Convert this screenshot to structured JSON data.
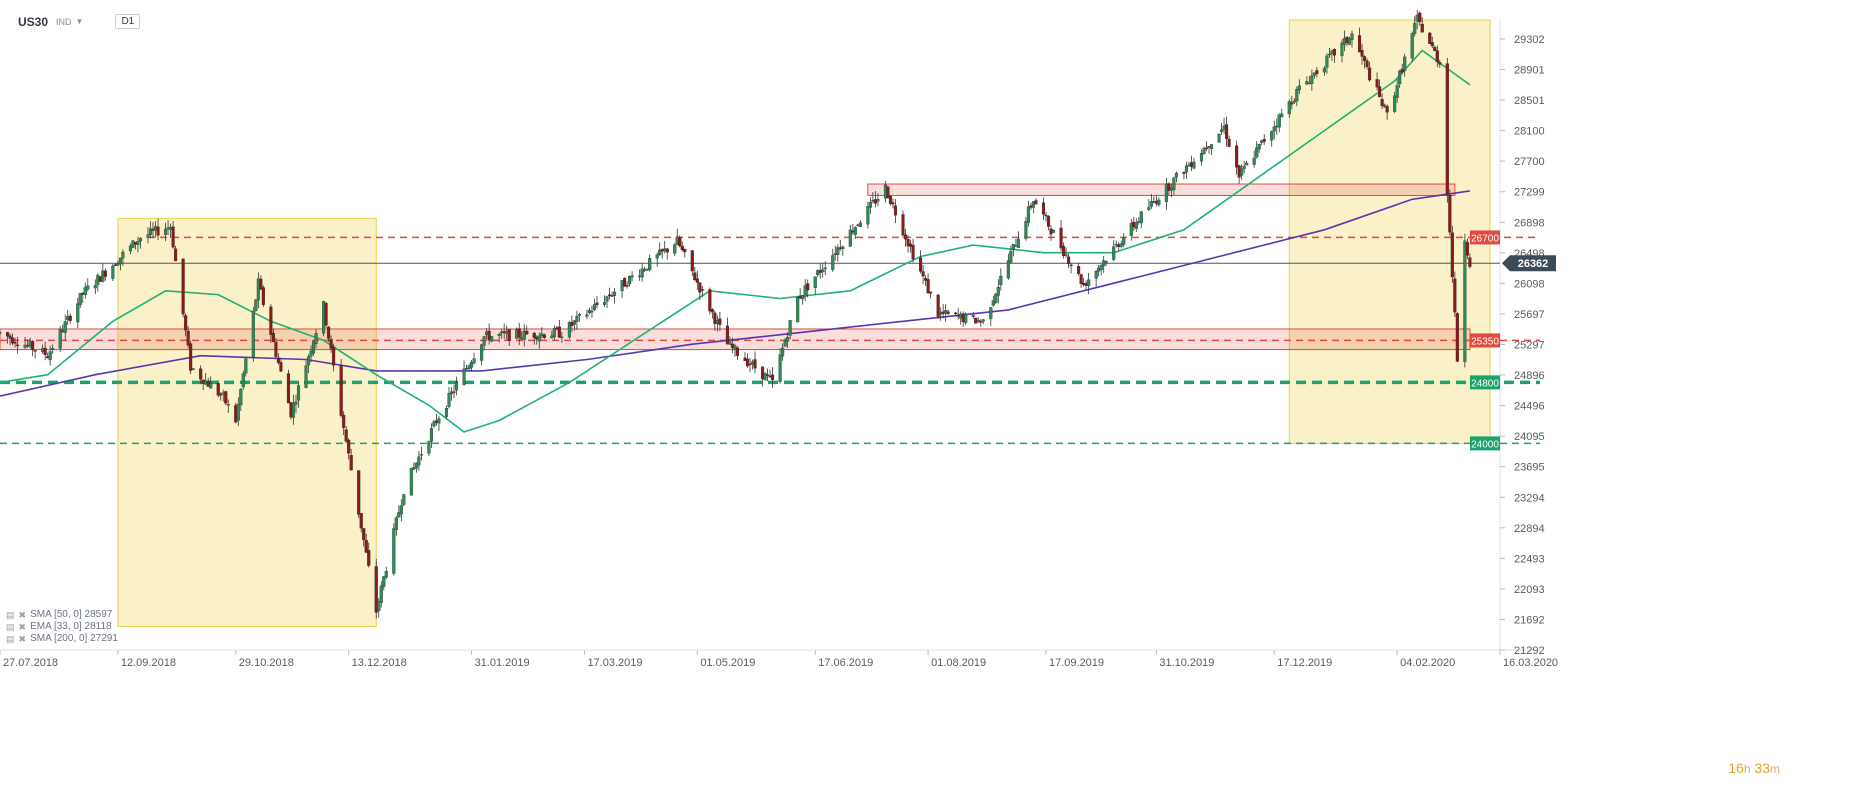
{
  "header": {
    "symbol": "US30",
    "symbol_type": "IND",
    "timeframe": "D1"
  },
  "legend": [
    {
      "label": "SMA [50, 0] 28597"
    },
    {
      "label": "EMA [33, 0] 28118"
    },
    {
      "label": "SMA [200, 0] 27291"
    }
  ],
  "countdown": {
    "hours": "16",
    "h": "h",
    "minutes": "33",
    "m": "m"
  },
  "colors": {
    "up": "#2e8b57",
    "down": "#8b1a1a",
    "sma50": "#1db372",
    "sma200": "#5a35b0",
    "resistance": "#e04a3f",
    "support": "#1aa36a",
    "zone": "#f8ecb5",
    "current": "#4a5560"
  },
  "chart_data": {
    "type": "candlestick",
    "symbol": "US30",
    "timeframe": "D1",
    "ylim": [
      21292,
      29550
    ],
    "xlim": [
      "2018-07-27",
      "2020-03-16"
    ],
    "y_ticks": [
      29302,
      28901,
      28501,
      28100,
      27700,
      27299,
      26898,
      26498,
      26098,
      25697,
      25297,
      24896,
      24496,
      24095,
      23695,
      23294,
      22894,
      22493,
      22093,
      21692,
      21292
    ],
    "x_ticks": [
      "27.07.2018",
      "12.09.2018",
      "29.10.2018",
      "13.12.2018",
      "31.01.2019",
      "17.03.2019",
      "01.05.2019",
      "17.06.2019",
      "01.08.2019",
      "17.09.2019",
      "31.10.2019",
      "17.12.2019",
      "04.02.2020",
      "16.03.2020"
    ],
    "current_price": 26362,
    "price_path": [
      [
        "2018-07-27",
        25450
      ],
      [
        "2018-08-15",
        25160
      ],
      [
        "2018-08-29",
        25960
      ],
      [
        "2018-09-21",
        26700
      ],
      [
        "2018-10-03",
        26850
      ],
      [
        "2018-10-11",
        25000
      ],
      [
        "2018-10-24",
        24600
      ],
      [
        "2018-10-29",
        24300
      ],
      [
        "2018-11-07",
        26100
      ],
      [
        "2018-11-20",
        24400
      ],
      [
        "2018-12-03",
        25800
      ],
      [
        "2018-12-10",
        24400
      ],
      [
        "2018-12-24",
        21800
      ],
      [
        "2019-01-04",
        23400
      ],
      [
        "2019-01-17",
        24300
      ],
      [
        "2019-02-05",
        25400
      ],
      [
        "2019-03-08",
        25450
      ],
      [
        "2019-04-23",
        26650
      ],
      [
        "2019-05-13",
        25300
      ],
      [
        "2019-05-31",
        24800
      ],
      [
        "2019-06-10",
        25900
      ],
      [
        "2019-07-15",
        27350
      ],
      [
        "2019-08-05",
        25700
      ],
      [
        "2019-08-23",
        25600
      ],
      [
        "2019-09-12",
        27200
      ],
      [
        "2019-10-02",
        26080
      ],
      [
        "2019-10-28",
        27100
      ],
      [
        "2019-11-27",
        28150
      ],
      [
        "2019-12-03",
        27500
      ],
      [
        "2019-12-27",
        28650
      ],
      [
        "2020-01-17",
        29350
      ],
      [
        "2020-01-31",
        28300
      ],
      [
        "2020-02-12",
        29560
      ],
      [
        "2020-02-21",
        28990
      ],
      [
        "2020-02-28",
        25100
      ],
      [
        "2020-03-02",
        26700
      ],
      [
        "2020-03-04",
        26360
      ]
    ],
    "sma_50": [
      [
        "2018-07-27",
        24800
      ],
      [
        "2018-08-15",
        24900
      ],
      [
        "2018-09-10",
        25600
      ],
      [
        "2018-10-01",
        26000
      ],
      [
        "2018-10-22",
        25950
      ],
      [
        "2018-11-12",
        25600
      ],
      [
        "2018-12-03",
        25350
      ],
      [
        "2018-12-24",
        24900
      ],
      [
        "2019-01-14",
        24500
      ],
      [
        "2019-01-28",
        24150
      ],
      [
        "2019-02-11",
        24300
      ],
      [
        "2019-03-11",
        24800
      ],
      [
        "2019-04-08",
        25400
      ],
      [
        "2019-05-06",
        26000
      ],
      [
        "2019-06-03",
        25900
      ],
      [
        "2019-07-01",
        26000
      ],
      [
        "2019-07-29",
        26450
      ],
      [
        "2019-08-19",
        26600
      ],
      [
        "2019-09-16",
        26500
      ],
      [
        "2019-10-14",
        26500
      ],
      [
        "2019-11-11",
        26800
      ],
      [
        "2019-12-09",
        27450
      ],
      [
        "2020-01-06",
        28100
      ],
      [
        "2020-02-03",
        28750
      ],
      [
        "2020-02-14",
        29150
      ],
      [
        "2020-03-04",
        28700
      ]
    ],
    "sma_200": [
      [
        "2018-07-27",
        24620
      ],
      [
        "2018-09-03",
        24900
      ],
      [
        "2018-10-15",
        25150
      ],
      [
        "2018-11-26",
        25100
      ],
      [
        "2018-12-24",
        24950
      ],
      [
        "2019-02-04",
        24950
      ],
      [
        "2019-03-18",
        25100
      ],
      [
        "2019-04-29",
        25300
      ],
      [
        "2019-06-10",
        25450
      ],
      [
        "2019-07-22",
        25600
      ],
      [
        "2019-09-02",
        25750
      ],
      [
        "2019-10-14",
        26100
      ],
      [
        "2019-11-25",
        26450
      ],
      [
        "2020-01-06",
        26800
      ],
      [
        "2020-02-10",
        27200
      ],
      [
        "2020-03-04",
        27310
      ]
    ],
    "levels": [
      {
        "value": 26700,
        "label": "26700",
        "color": "#e04a3f",
        "style": "dashed",
        "x_from": "2018-09-24"
      },
      {
        "value": 25350,
        "label": "25350",
        "color": "#e04a3f",
        "style": "dashed",
        "x_from": "2018-07-27"
      },
      {
        "value": 24800,
        "label": "24800",
        "color": "#1aa36a",
        "style": "dashed-thick",
        "x_from": "2018-07-27"
      },
      {
        "value": 24000,
        "label": "24000",
        "color": "#1aa36a",
        "style": "dashed",
        "x_from": "2018-07-27"
      }
    ],
    "zones": [
      {
        "x0": "2018-07-27",
        "x1": "2020-03-04",
        "y0": 25230,
        "y1": 25500,
        "color": "#e04a3f"
      },
      {
        "x0": "2019-07-08",
        "x1": "2020-02-27",
        "y0": 27250,
        "y1": 27400,
        "color": "#e04a3f"
      }
    ],
    "boxes": [
      {
        "x0": "2018-09-12",
        "x1": "2018-12-24",
        "y0": 21600,
        "y1": 26950
      },
      {
        "x0": "2019-12-23",
        "x1": "2020-03-12",
        "y0": 24000,
        "y1": 29550
      }
    ]
  }
}
